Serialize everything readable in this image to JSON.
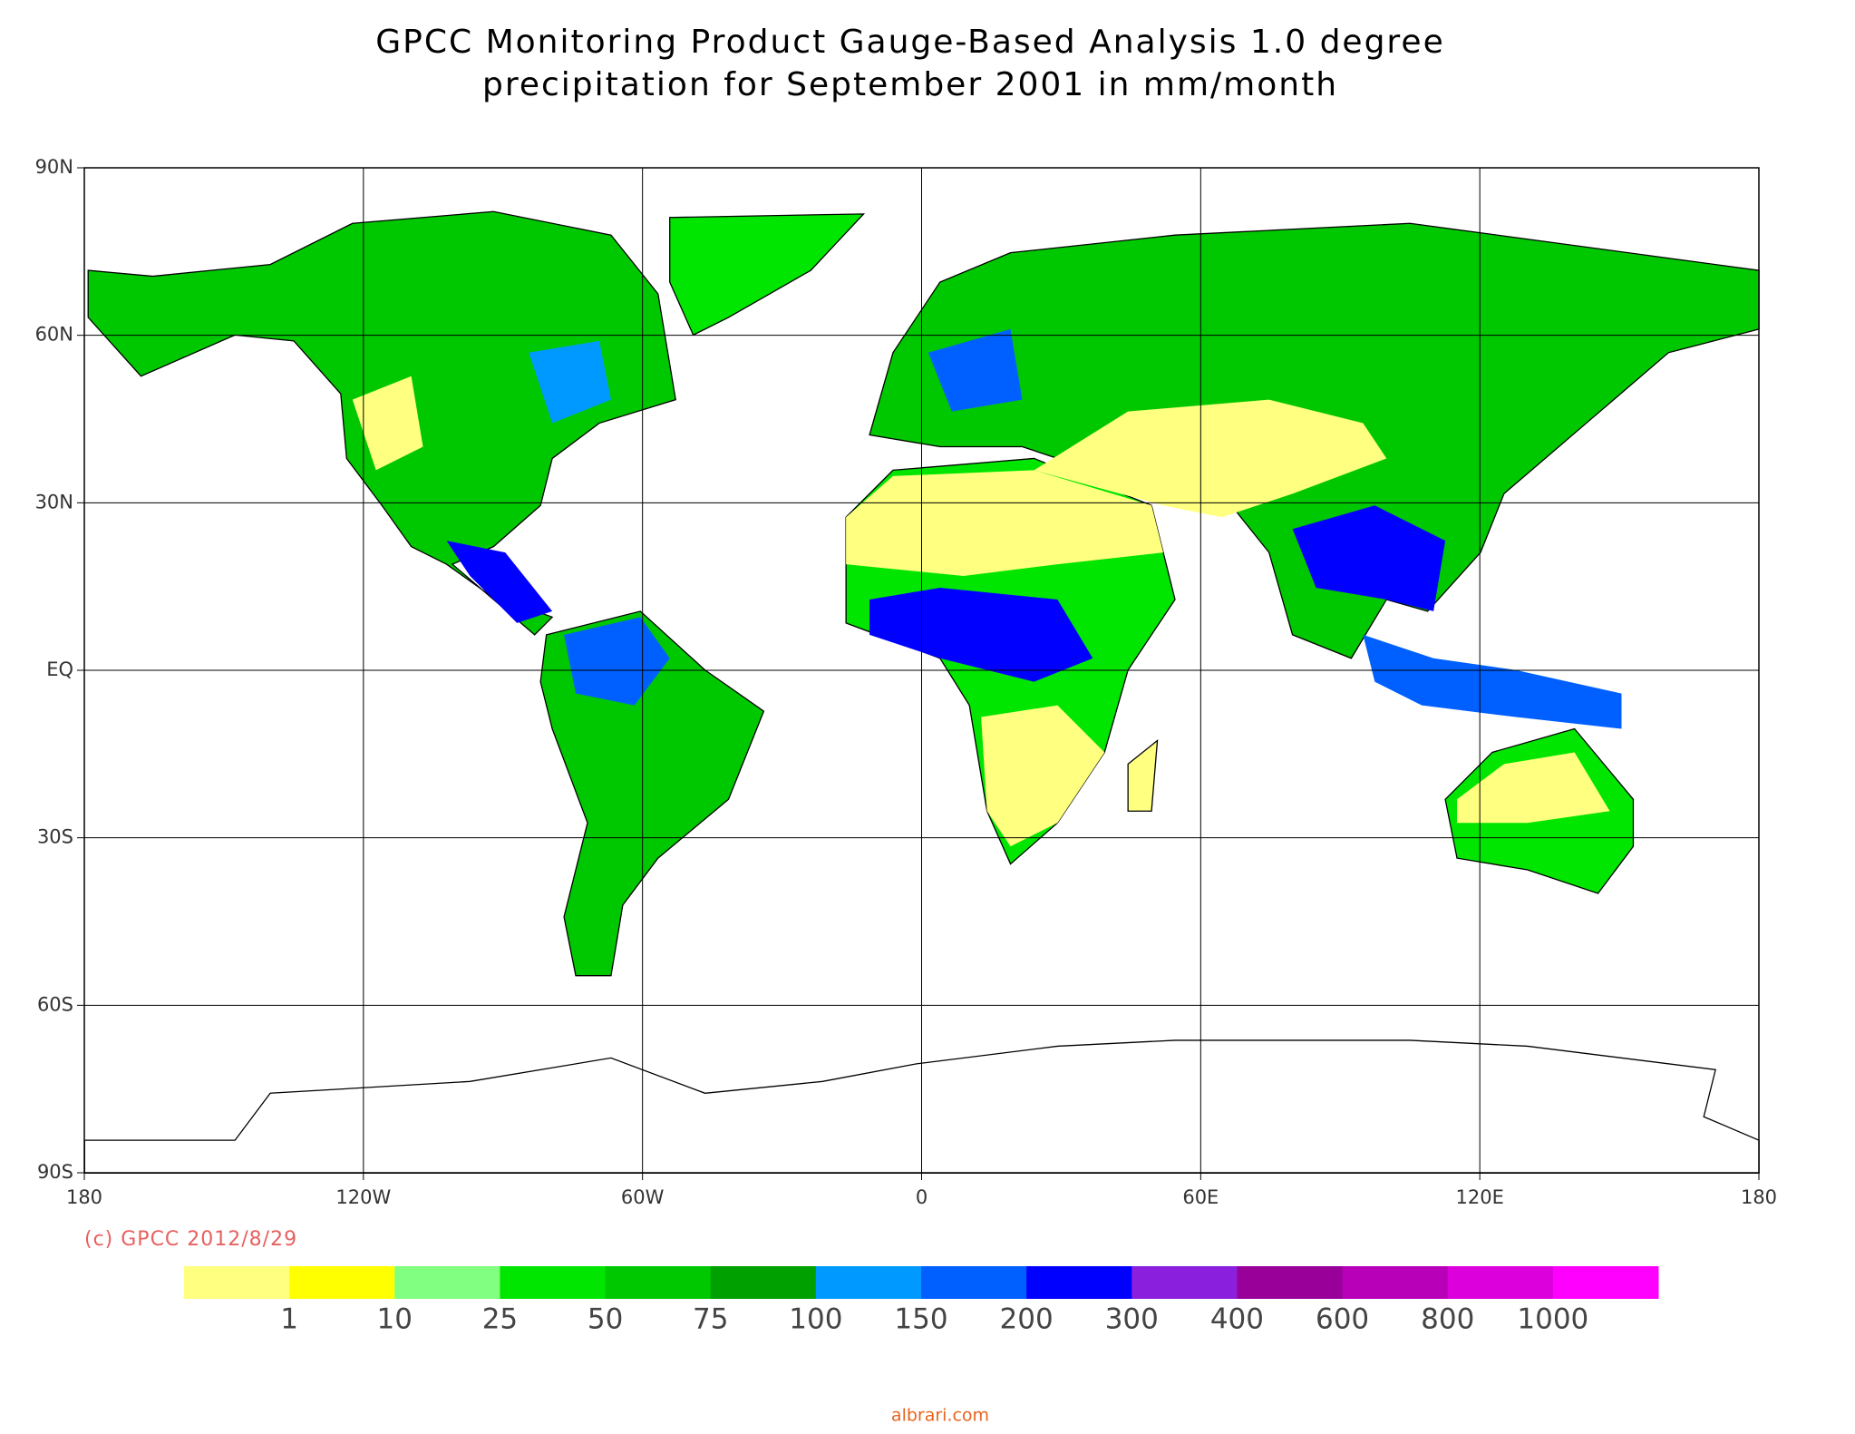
{
  "title": [
    "GPCC Monitoring Product Gauge-Based Analysis 1.0 degree",
    "precipitation for September  2001 in mm/month"
  ],
  "map": {
    "xlim": [
      -180,
      180
    ],
    "ylim": [
      -90,
      90
    ],
    "xticks": [
      {
        "value": -180,
        "label": "180"
      },
      {
        "value": -120,
        "label": "120W"
      },
      {
        "value": -60,
        "label": "60W"
      },
      0,
      {
        "value": 60,
        "label": "60E"
      },
      {
        "value": 120,
        "label": "120E"
      },
      180
    ],
    "yticks": [
      {
        "value": 90,
        "label": "90N"
      },
      {
        "value": 60,
        "label": "60N"
      },
      {
        "value": 30,
        "label": "30N"
      },
      {
        "value": 0,
        "label": "EQ"
      },
      {
        "value": -30,
        "label": "30S"
      },
      {
        "value": -60,
        "label": "60S"
      },
      {
        "value": -90,
        "label": "90S"
      }
    ],
    "grid": true
  },
  "credit": "(c) GPCC 2012/8/29",
  "colorbar": {
    "colors": [
      "#ffff80",
      "#ffff00",
      "#80ff80",
      "#00e600",
      "#00c800",
      "#00a000",
      "#0099ff",
      "#0060ff",
      "#0000ff",
      "#8a1fdd",
      "#990099",
      "#b800b8",
      "#dc00dc",
      "#ff00ff"
    ],
    "labels": [
      1,
      10,
      25,
      50,
      75,
      100,
      150,
      200,
      300,
      400,
      600,
      800,
      1000
    ]
  },
  "watermark": "albrari.com"
}
